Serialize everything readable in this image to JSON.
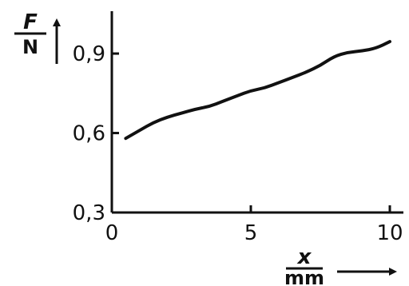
{
  "chart_data": {
    "type": "line",
    "title": "",
    "xlabel": {
      "var": "x",
      "unit": "mm"
    },
    "ylabel": {
      "var": "F",
      "unit": "N"
    },
    "xlim": [
      0,
      10.3
    ],
    "ylim": [
      0.3,
      1.06
    ],
    "xticks": [
      0,
      5,
      10
    ],
    "xtick_labels": [
      "0",
      "5",
      "10"
    ],
    "yticks": [
      0.3,
      0.6,
      0.9
    ],
    "ytick_labels": [
      "0,3",
      "0,6",
      "0,9"
    ],
    "grid": false,
    "series": [
      {
        "x": [
          0.5,
          1,
          1.5,
          2,
          2.5,
          3,
          3.5,
          4,
          4.5,
          5,
          5.5,
          6,
          6.5,
          7,
          7.5,
          8,
          8.5,
          9,
          9.5,
          10
        ],
        "y": [
          0.58,
          0.61,
          0.64,
          0.66,
          0.675,
          0.69,
          0.7,
          0.72,
          0.74,
          0.76,
          0.77,
          0.79,
          0.81,
          0.83,
          0.855,
          0.89,
          0.905,
          0.91,
          0.92,
          0.945
        ]
      }
    ],
    "colors": {
      "ink": "#111111",
      "background": "#ffffff"
    }
  }
}
